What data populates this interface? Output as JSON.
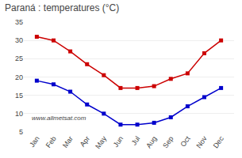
{
  "chart_data": {
    "type": "line",
    "title": "Paraná : temperatures (°C)",
    "categories": [
      "Jan",
      "Feb",
      "Mar",
      "Apr",
      "May",
      "Jun",
      "Jul",
      "Aug",
      "Sep",
      "Oct",
      "Nov",
      "Dec"
    ],
    "series": [
      {
        "color": "#cc0000",
        "values": [
          31,
          30,
          27,
          23.5,
          20.5,
          17,
          17,
          17.5,
          19.5,
          21,
          26.5,
          30
        ]
      },
      {
        "color": "#0000cc",
        "values": [
          19,
          18,
          16,
          12.5,
          10,
          7,
          7,
          7.5,
          9,
          12,
          14.5,
          17
        ]
      }
    ],
    "marker": "square",
    "line_style": "solid",
    "ylim": [
      5,
      35
    ],
    "yticks": [
      5,
      10,
      15,
      20,
      25,
      30,
      35
    ],
    "grid": true,
    "annotations": [
      "www.allmetsat.com"
    ]
  }
}
